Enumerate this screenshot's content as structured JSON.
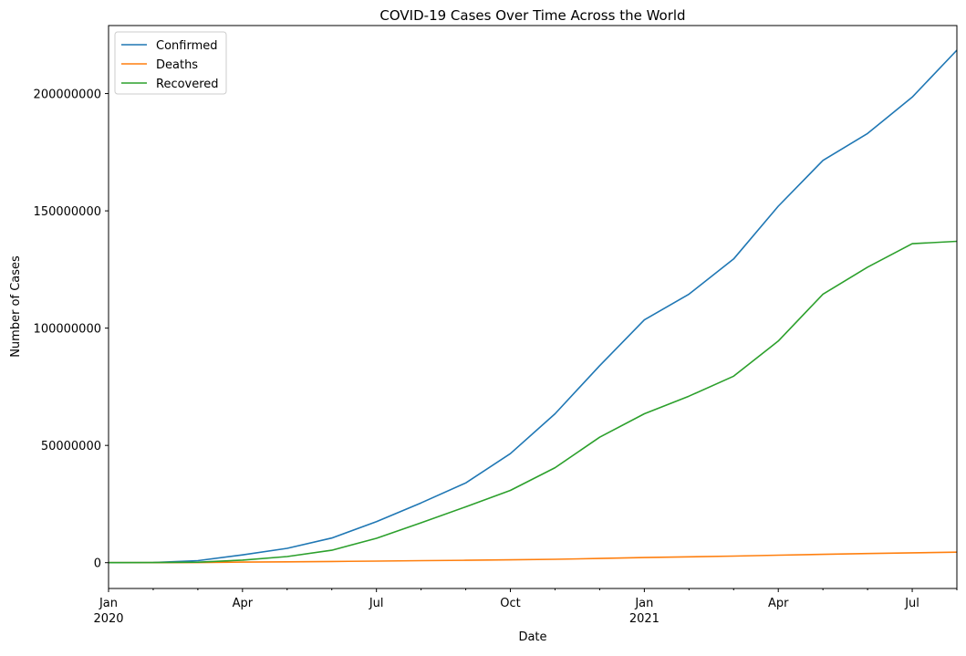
{
  "chart_data": {
    "type": "line",
    "title": "COVID-19 Cases Over Time Across the World",
    "xlabel": "Date",
    "ylabel": "Number of Cases",
    "ylim": [
      -11000000,
      229000000
    ],
    "xlim": [
      "2020-01",
      "2021-08"
    ],
    "grid": false,
    "legend_position": "top-left",
    "x": [
      "2020-01",
      "2020-02",
      "2020-03",
      "2020-04",
      "2020-05",
      "2020-06",
      "2020-07",
      "2020-08",
      "2020-09",
      "2020-10",
      "2020-11",
      "2020-12",
      "2021-01",
      "2021-02",
      "2021-03",
      "2021-04",
      "2021-05",
      "2021-06",
      "2021-07",
      "2021-08"
    ],
    "x_ticks": [
      {
        "date": "2020-01",
        "label": "Jan",
        "sublabel": "2020"
      },
      {
        "date": "2020-04",
        "label": "Apr",
        "sublabel": ""
      },
      {
        "date": "2020-07",
        "label": "Jul",
        "sublabel": ""
      },
      {
        "date": "2020-10",
        "label": "Oct",
        "sublabel": ""
      },
      {
        "date": "2021-01",
        "label": "Jan",
        "sublabel": "2021"
      },
      {
        "date": "2021-04",
        "label": "Apr",
        "sublabel": ""
      },
      {
        "date": "2021-07",
        "label": "Jul",
        "sublabel": ""
      }
    ],
    "y_ticks": [
      0,
      50000000,
      100000000,
      150000000,
      200000000
    ],
    "y_tick_labels": [
      "0",
      "50000000",
      "100000000",
      "150000000",
      "200000000"
    ],
    "series": [
      {
        "name": "Confirmed",
        "color": "#1f77b4",
        "values": [
          10000,
          80000,
          850000,
          3300000,
          6100000,
          10500000,
          17500000,
          25500000,
          34000000,
          46500000,
          63500000,
          84000000,
          103500000,
          114500000,
          129500000,
          152000000,
          171500000,
          183000000,
          198500000,
          218500000
        ]
      },
      {
        "name": "Deaths",
        "color": "#ff7f0e",
        "values": [
          200,
          3000,
          40000,
          230000,
          370000,
          510000,
          680000,
          850000,
          1000000,
          1200000,
          1450000,
          1800000,
          2200000,
          2500000,
          2800000,
          3200000,
          3550000,
          3900000,
          4200000,
          4500000
        ]
      },
      {
        "name": "Recovered",
        "color": "#2ca02c",
        "values": [
          0,
          30000,
          200000,
          1100000,
          2600000,
          5300000,
          10400000,
          17000000,
          23800000,
          30800000,
          40500000,
          53500000,
          63500000,
          71000000,
          79500000,
          94500000,
          114500000,
          126000000,
          136000000,
          137000000
        ]
      }
    ]
  }
}
